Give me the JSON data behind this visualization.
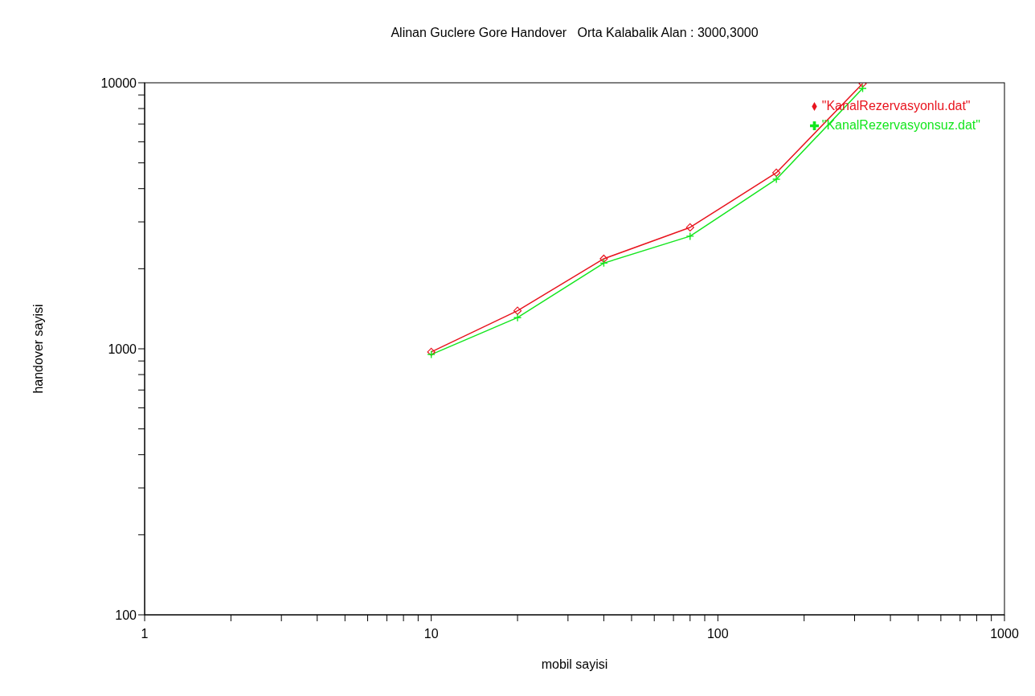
{
  "chart_data": {
    "type": "line",
    "title": "Alinan Guclere Gore Handover   Orta Kalabalik Alan : 3000,3000",
    "xlabel": "mobil sayisi",
    "ylabel": "handover sayisi",
    "log": "xy",
    "grid": false,
    "legend": "top right",
    "line_style": "solid",
    "x": [
      10,
      20,
      40,
      80,
      160,
      320
    ],
    "xlim": [
      1,
      1000
    ],
    "ylim": [
      100,
      10000
    ],
    "xticks": [
      1,
      {
        "value": 2,
        "label": null
      },
      {
        "value": 3,
        "label": null
      },
      {
        "value": 4,
        "label": null
      },
      {
        "value": 5,
        "label": null
      },
      {
        "value": 6,
        "label": null
      },
      {
        "value": 7,
        "label": null
      },
      {
        "value": 8,
        "label": null
      },
      {
        "value": 9,
        "label": null
      },
      10,
      {
        "value": 20,
        "label": null
      },
      {
        "value": 30,
        "label": null
      },
      {
        "value": 40,
        "label": null
      },
      {
        "value": 50,
        "label": null
      },
      {
        "value": 60,
        "label": null
      },
      {
        "value": 70,
        "label": null
      },
      {
        "value": 80,
        "label": null
      },
      {
        "value": 90,
        "label": null
      },
      100,
      {
        "value": 200,
        "label": null
      },
      {
        "value": 300,
        "label": null
      },
      {
        "value": 400,
        "label": null
      },
      {
        "value": 500,
        "label": null
      },
      {
        "value": 600,
        "label": null
      },
      {
        "value": 700,
        "label": null
      },
      {
        "value": 800,
        "label": null
      },
      {
        "value": 900,
        "label": null
      },
      1000
    ],
    "yticks": [
      100,
      {
        "value": 200,
        "label": null
      },
      {
        "value": 300,
        "label": null
      },
      {
        "value": 400,
        "label": null
      },
      {
        "value": 500,
        "label": null
      },
      {
        "value": 600,
        "label": null
      },
      {
        "value": 700,
        "label": null
      },
      {
        "value": 800,
        "label": null
      },
      {
        "value": 900,
        "label": null
      },
      1000,
      {
        "value": 2000,
        "label": null
      },
      {
        "value": 3000,
        "label": null
      },
      {
        "value": 4000,
        "label": null
      },
      {
        "value": 5000,
        "label": null
      },
      {
        "value": 6000,
        "label": null
      },
      {
        "value": 7000,
        "label": null
      },
      {
        "value": 8000,
        "label": null
      },
      {
        "value": 9000,
        "label": null
      },
      10000
    ],
    "series": [
      {
        "name": "\"KanalRezervasyonlu.dat\"",
        "color": "#e8141e",
        "marker": "diamond",
        "values": [
          973,
          1390,
          2180,
          2860,
          4590,
          9930
        ]
      },
      {
        "name": "\"KanalRezervasyonsuz.dat\"",
        "color": "#14e61e",
        "marker": "cross",
        "values": [
          952,
          1310,
          2100,
          2650,
          4340,
          9520
        ]
      }
    ]
  }
}
